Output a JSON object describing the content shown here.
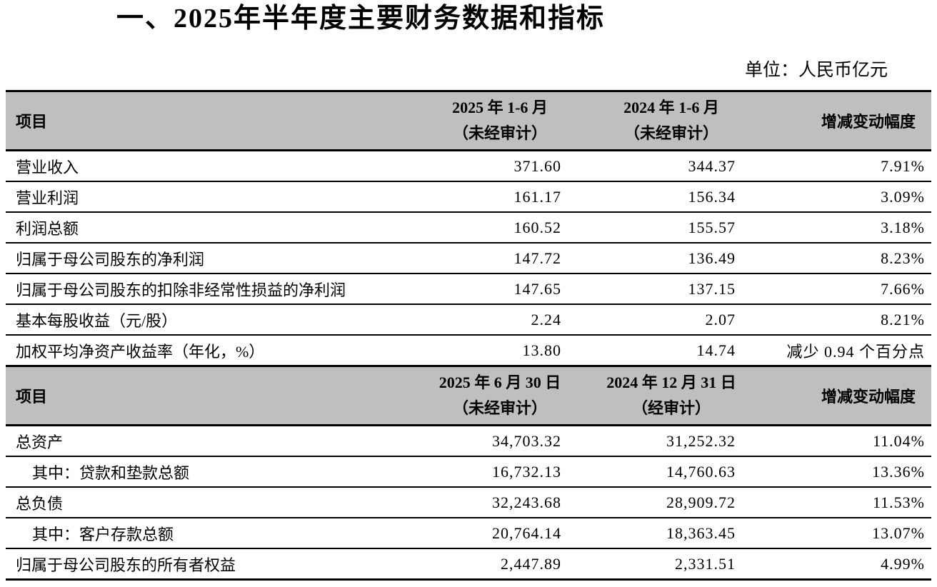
{
  "title": "一、2025年半年度主要财务数据和指标",
  "unit_label": "单位：人民币亿元",
  "colors": {
    "header_bg": "#bfbfbf",
    "border": "#000000",
    "text": "#000000",
    "page_bg": "#ffffff"
  },
  "income_table": {
    "header": {
      "item": "项目",
      "col_2025_line1": "2025 年 1-6 月",
      "col_2025_line2": "（未经审计）",
      "col_2024_line1": "2024 年 1-6 月",
      "col_2024_line2": "（未经审计）",
      "change": "增减变动幅度"
    },
    "rows": [
      {
        "item": "营业收入",
        "v2025": "371.60",
        "v2024": "344.37",
        "change": "7.91%"
      },
      {
        "item": "营业利润",
        "v2025": "161.17",
        "v2024": "156.34",
        "change": "3.09%"
      },
      {
        "item": "利润总额",
        "v2025": "160.52",
        "v2024": "155.57",
        "change": "3.18%"
      },
      {
        "item": "归属于母公司股东的净利润",
        "v2025": "147.72",
        "v2024": "136.49",
        "change": "8.23%"
      },
      {
        "item": "归属于母公司股东的扣除非经常性损益的净利润",
        "v2025": "147.65",
        "v2024": "137.15",
        "change": "7.66%"
      },
      {
        "item": "基本每股收益（元/股）",
        "v2025": "2.24",
        "v2024": "2.07",
        "change": "8.21%"
      },
      {
        "item": "加权平均净资产收益率（年化，%）",
        "v2025": "13.80",
        "v2024": "14.74",
        "change": "减少 0.94 个百分点"
      }
    ]
  },
  "balance_table": {
    "header": {
      "item": "项目",
      "col_2025_line1": "2025 年 6 月 30 日",
      "col_2025_line2": "（未经审计）",
      "col_2024_line1": "2024 年 12 月 31 日",
      "col_2024_line2": "（经审计）",
      "change": "增减变动幅度"
    },
    "rows": [
      {
        "item": "总资产",
        "indent": false,
        "v2025": "34,703.32",
        "v2024": "31,252.32",
        "change": "11.04%"
      },
      {
        "item": "其中：贷款和垫款总额",
        "indent": true,
        "v2025": "16,732.13",
        "v2024": "14,760.63",
        "change": "13.36%"
      },
      {
        "item": "总负债",
        "indent": false,
        "v2025": "32,243.68",
        "v2024": "28,909.72",
        "change": "11.53%"
      },
      {
        "item": "其中：客户存款总额",
        "indent": true,
        "v2025": "20,764.14",
        "v2024": "18,363.45",
        "change": "13.07%"
      },
      {
        "item": "归属于母公司股东的所有者权益",
        "indent": false,
        "v2025": "2,447.89",
        "v2024": "2,331.51",
        "change": "4.99%"
      }
    ]
  }
}
